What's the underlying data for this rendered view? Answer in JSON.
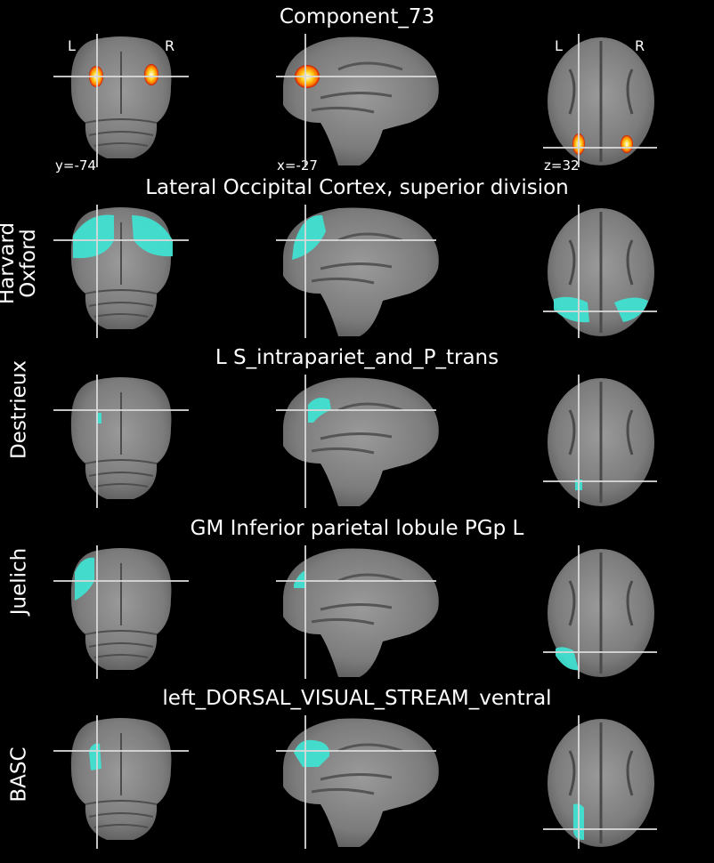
{
  "rows": [
    {
      "title": "Component_73",
      "row_label": "",
      "overlay": "hot"
    },
    {
      "title": "Lateral Occipital Cortex, superior division",
      "row_label": "Harvard Oxford",
      "overlay": "cyan"
    },
    {
      "title": "L S_intrapariet_and_P_trans",
      "row_label": "Destrieux",
      "overlay": "cyan"
    },
    {
      "title": "GM Inferior parietal lobule PGp L",
      "row_label": "Juelich",
      "overlay": "cyan"
    },
    {
      "title": "left_DORSAL_VISUAL_STREAM_ventral",
      "row_label": "BASC",
      "overlay": "cyan"
    }
  ],
  "orientation": {
    "left": "L",
    "right": "R"
  },
  "cut_coords": {
    "coronal": "y=-74",
    "sagittal": "x=-27",
    "axial": "z=32"
  },
  "colors": {
    "background": "#000000",
    "crosshair": "#d9d9d9",
    "atlas_overlay": "#40e0d0",
    "hot_core": "#ffffff",
    "hot_mid": "#ffd21e",
    "hot_edge": "#c81400"
  }
}
